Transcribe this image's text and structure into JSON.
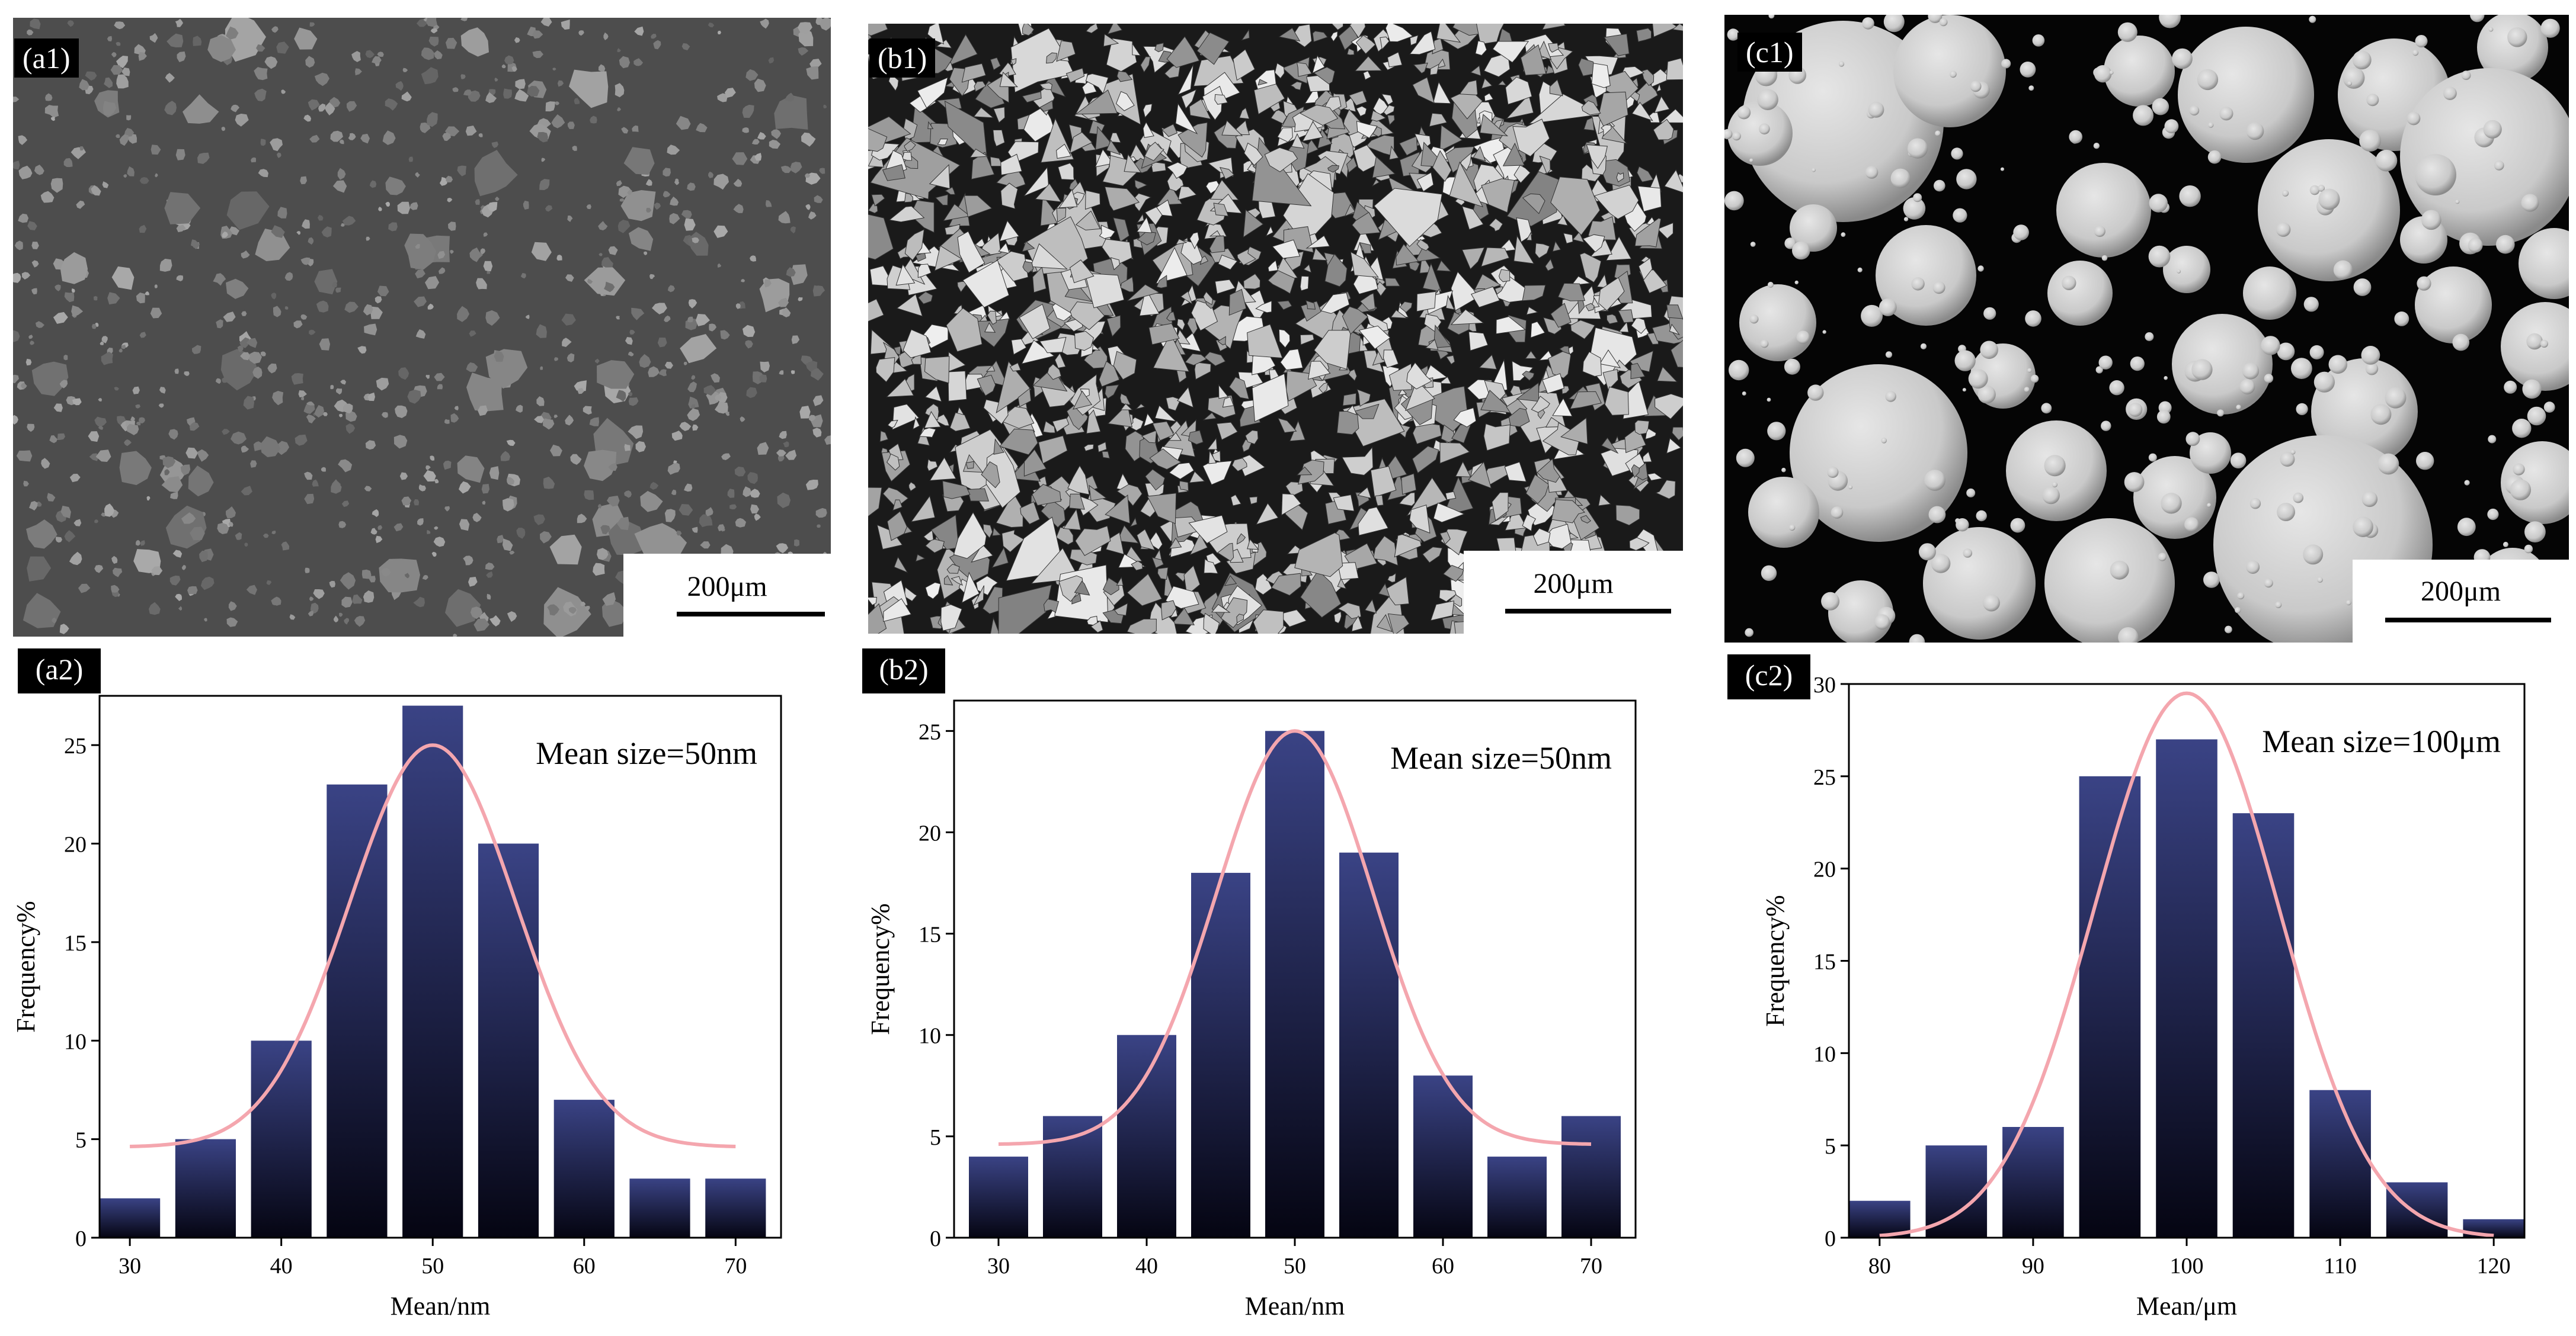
{
  "panels": {
    "a1": {
      "label": "(a1)",
      "scale_text": "200μm"
    },
    "b1": {
      "label": "(b1)",
      "scale_text": "200μm"
    },
    "c1": {
      "label": "(c1)",
      "scale_text": "200μm"
    }
  },
  "chart_data": [
    {
      "id": "a2",
      "panel_label": "(a2)",
      "type": "bar",
      "annotation": "Mean size=50nm",
      "xlabel": "Mean/nm",
      "ylabel": "Frequency%",
      "categories": [
        30,
        35,
        40,
        45,
        50,
        55,
        60,
        65,
        70
      ],
      "values": [
        2,
        5,
        10,
        23,
        27,
        20,
        7,
        3,
        3
      ],
      "xlim": [
        28,
        73
      ],
      "ylim": [
        0,
        27.5
      ],
      "xticks": [
        30,
        40,
        50,
        60,
        70
      ],
      "yticks": [
        0,
        5,
        10,
        15,
        20,
        25
      ],
      "fit": {
        "type": "gaussian",
        "baseline": 4.6,
        "peak": 25,
        "center": 50,
        "sigma": 5.5,
        "color": "#f4a6ae"
      },
      "bar_gradient": [
        "#3a4385",
        "#050512"
      ]
    },
    {
      "id": "b2",
      "panel_label": "(b2)",
      "type": "bar",
      "annotation": "Mean size=50nm",
      "xlabel": "Mean/nm",
      "ylabel": "Frequency%",
      "categories": [
        30,
        35,
        40,
        45,
        50,
        55,
        60,
        65,
        70
      ],
      "values": [
        4,
        6,
        10,
        18,
        25,
        19,
        8,
        4,
        6
      ],
      "xlim": [
        27,
        73
      ],
      "ylim": [
        0,
        26.5
      ],
      "xticks": [
        30,
        40,
        50,
        60,
        70
      ],
      "yticks": [
        0,
        5,
        10,
        15,
        20,
        25
      ],
      "fit": {
        "type": "gaussian",
        "baseline": 4.6,
        "peak": 25,
        "center": 50,
        "sigma": 5.3,
        "color": "#f4a6ae"
      },
      "bar_gradient": [
        "#3a4385",
        "#050512"
      ]
    },
    {
      "id": "c2",
      "panel_label": "(c2)",
      "type": "bar",
      "annotation": "Mean size=100μm",
      "xlabel": "Mean/μm",
      "ylabel": "Frequency%",
      "categories": [
        80,
        85,
        90,
        95,
        100,
        105,
        110,
        115,
        120
      ],
      "values": [
        2,
        5,
        6,
        25,
        27,
        23,
        8,
        3,
        1
      ],
      "xlim": [
        78,
        122
      ],
      "ylim": [
        0,
        30
      ],
      "xticks": [
        80,
        90,
        100,
        110,
        120
      ],
      "yticks": [
        0,
        5,
        10,
        15,
        20,
        25,
        30
      ],
      "fit": {
        "type": "gaussian",
        "baseline": 0,
        "peak": 29.5,
        "center": 100,
        "sigma": 6,
        "color": "#f4a6ae"
      },
      "bar_gradient": [
        "#3a4385",
        "#050512"
      ]
    }
  ]
}
